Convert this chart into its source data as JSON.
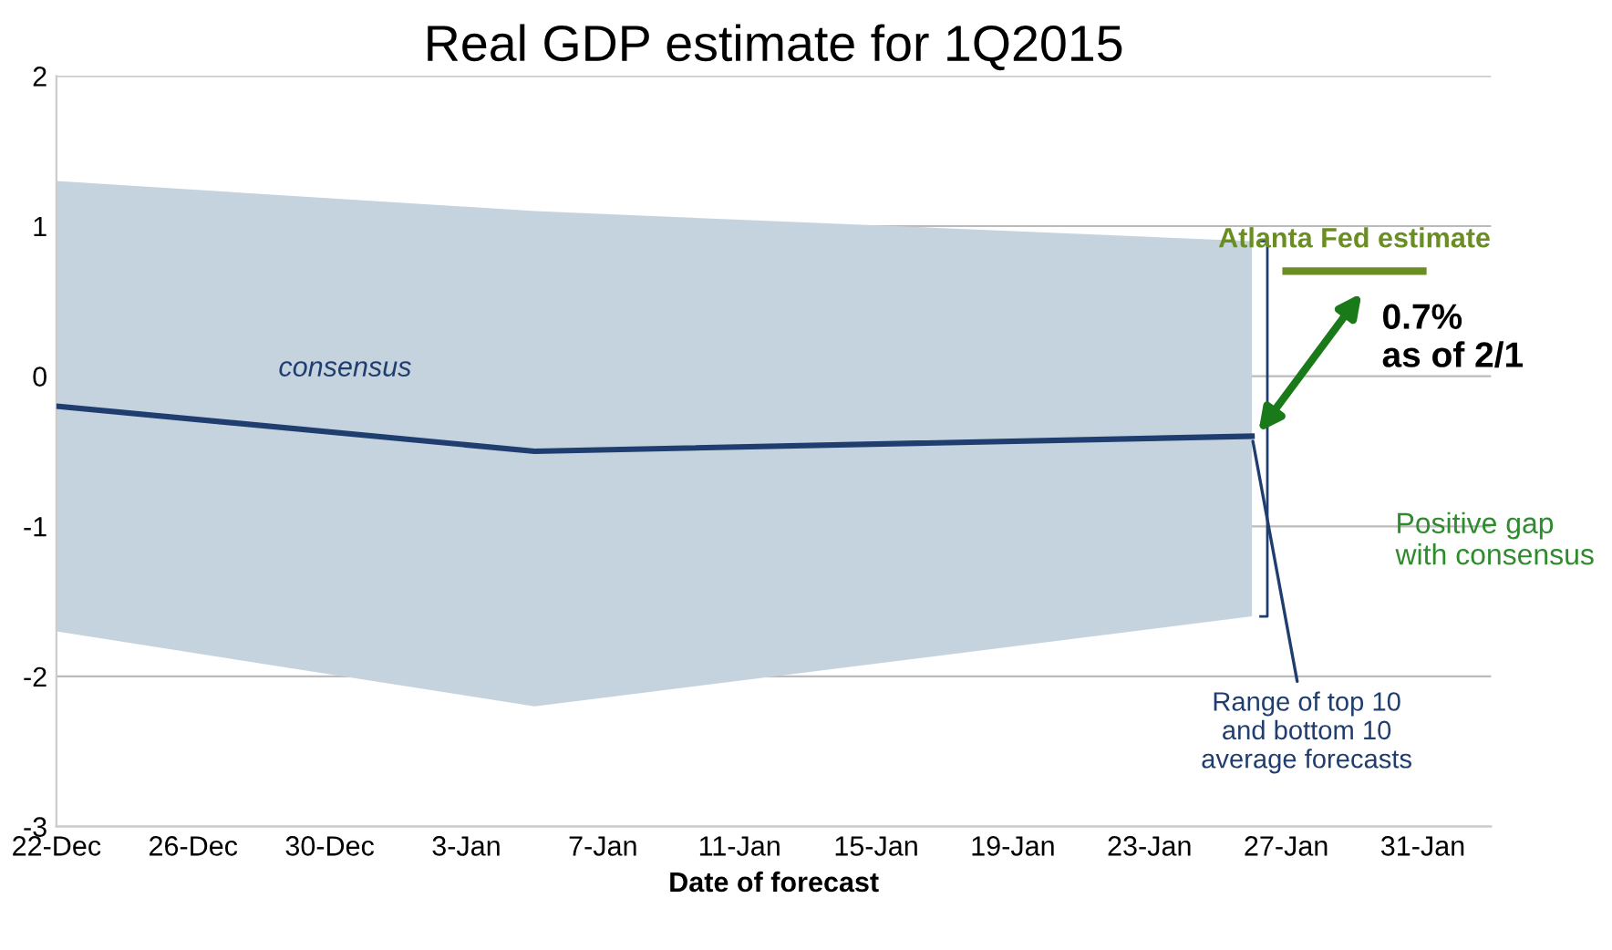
{
  "chart_data": {
    "type": "line",
    "title": "Real GDP estimate for 1Q2015",
    "xlabel": "Date of forecast",
    "xlim": [
      "2014-12-22",
      "2015-02-02"
    ],
    "xticks": [
      {
        "value": "2014-12-22",
        "label": "22-Dec"
      },
      {
        "value": "2014-12-26",
        "label": "26-Dec"
      },
      {
        "value": "2014-12-30",
        "label": "30-Dec"
      },
      {
        "value": "2015-01-03",
        "label": "3-Jan"
      },
      {
        "value": "2015-01-07",
        "label": "7-Jan"
      },
      {
        "value": "2015-01-11",
        "label": "11-Jan"
      },
      {
        "value": "2015-01-15",
        "label": "15-Jan"
      },
      {
        "value": "2015-01-19",
        "label": "19-Jan"
      },
      {
        "value": "2015-01-23",
        "label": "23-Jan"
      },
      {
        "value": "2015-01-27",
        "label": "27-Jan"
      },
      {
        "value": "2015-01-31",
        "label": "31-Jan"
      }
    ],
    "ylim": [
      -3,
      2
    ],
    "yticks": [
      -3,
      -2,
      -1,
      0,
      1,
      2
    ],
    "grid": "y",
    "series": [
      {
        "name": "consensus",
        "color": "#1f3d6e",
        "x": [
          "2014-12-22",
          "2015-01-05",
          "2015-01-26"
        ],
        "values": [
          -0.2,
          -0.5,
          -0.4
        ],
        "lower": [
          -1.7,
          -2.2,
          -1.6
        ],
        "upper": [
          1.3,
          1.1,
          0.9
        ]
      },
      {
        "name": "Atlanta Fed estimate",
        "color": "#6b8e23",
        "x": [
          "2015-01-27",
          "2015-01-31"
        ],
        "values": [
          0.7,
          0.7
        ]
      }
    ],
    "annotations": [
      "0.7%\nas of 2/1",
      "Positive gap\nwith consensus",
      {
        "text": "Range of top 10\nand bottom 10\naverage forecasts",
        "x": "2015-01-26",
        "y": -0.4
      }
    ]
  }
}
